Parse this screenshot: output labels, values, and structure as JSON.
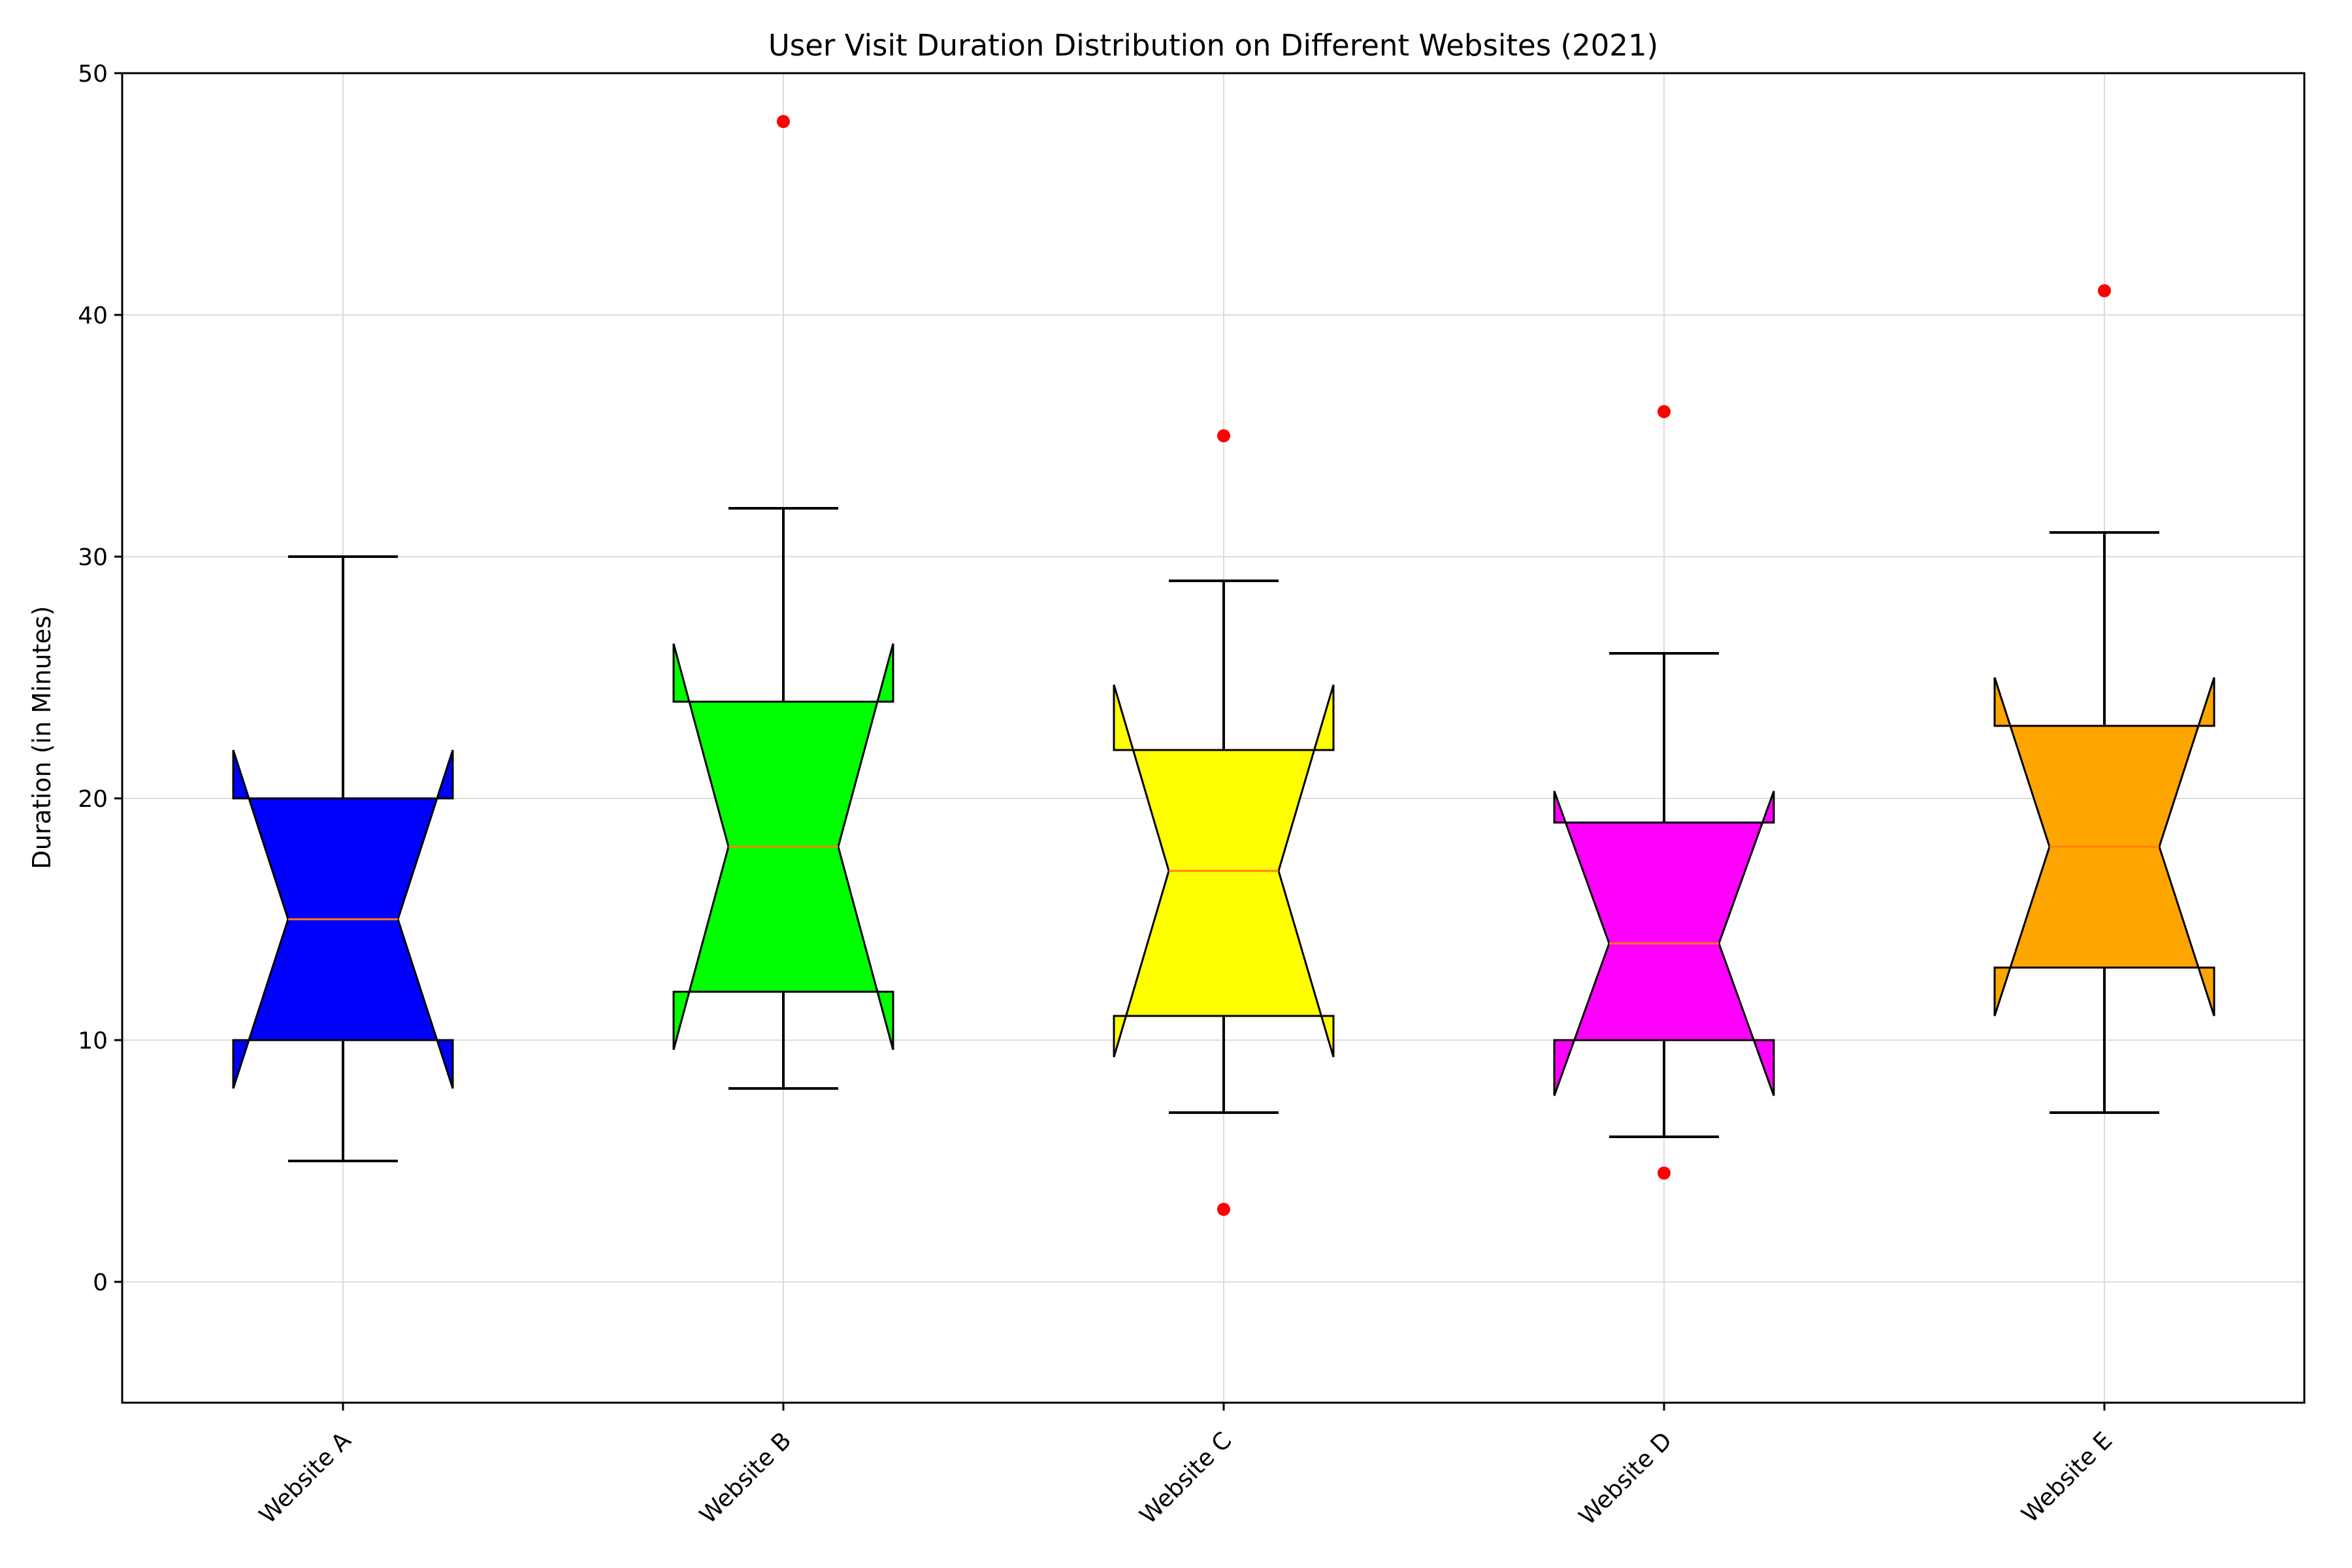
{
  "chart_data": {
    "type": "box",
    "title": "User Visit Duration Distribution on Different Websites (2021)",
    "xlabel": "",
    "ylabel": "Duration (in Minutes)",
    "ylim": [
      -5,
      50
    ],
    "yticks": [
      0,
      10,
      20,
      30,
      40,
      50
    ],
    "grid": true,
    "notched": true,
    "median_color": "#ff7f0e",
    "outlier_color": "#ff0000",
    "categories": [
      "Website A",
      "Website B",
      "Website C",
      "Website D",
      "Website E"
    ],
    "series": [
      {
        "whisker_low": 5,
        "q1": 10,
        "median": 15,
        "q3": 20,
        "whisker_high": 30,
        "notch_low": 8,
        "notch_high": 22,
        "outliers": [],
        "color": "#0000ff"
      },
      {
        "whisker_low": 8,
        "q1": 12,
        "median": 18,
        "q3": 24,
        "whisker_high": 32,
        "notch_low": 9.6,
        "notch_high": 26.4,
        "outliers": [
          48
        ],
        "color": "#00ff00"
      },
      {
        "whisker_low": 7,
        "q1": 11,
        "median": 17,
        "q3": 22,
        "whisker_high": 29,
        "notch_low": 9.3,
        "notch_high": 24.7,
        "outliers": [
          3,
          35
        ],
        "color": "#ffff00"
      },
      {
        "whisker_low": 6,
        "q1": 10,
        "median": 14,
        "q3": 19,
        "whisker_high": 26,
        "notch_low": 7.7,
        "notch_high": 20.3,
        "outliers": [
          4.5,
          36
        ],
        "color": "#ff00ff"
      },
      {
        "whisker_low": 7,
        "q1": 13,
        "median": 18,
        "q3": 23,
        "whisker_high": 31,
        "notch_low": 11,
        "notch_high": 25,
        "outliers": [
          41
        ],
        "color": "#ffa500"
      }
    ]
  }
}
